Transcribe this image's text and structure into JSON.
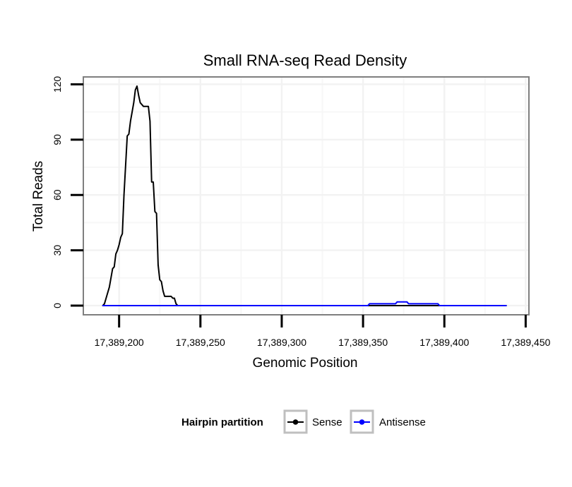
{
  "chart_data": {
    "type": "line",
    "title": "Small RNA-seq Read Density",
    "xlabel": "Genomic Position",
    "ylabel": "Total Reads",
    "xlim": [
      17389178,
      17389452
    ],
    "ylim": [
      -5,
      124
    ],
    "x_ticks": [
      17389200,
      17389250,
      17389300,
      17389350,
      17389400,
      17389450
    ],
    "x_tick_labels": [
      "17,389,200",
      "17,389,250",
      "17,389,300",
      "17,389,350",
      "17,389,400",
      "17,389,450"
    ],
    "y_ticks": [
      0,
      30,
      60,
      90,
      120
    ],
    "y_tick_labels": [
      "0",
      "30",
      "60",
      "90",
      "120"
    ],
    "grid": true,
    "legend": {
      "title": "Hairpin partition",
      "position": "bottom"
    },
    "series": [
      {
        "name": "Sense",
        "color": "#000000",
        "points": [
          [
            17389190,
            0
          ],
          [
            17389191,
            1
          ],
          [
            17389192,
            4
          ],
          [
            17389193,
            7
          ],
          [
            17389194,
            10
          ],
          [
            17389195,
            15
          ],
          [
            17389196,
            20
          ],
          [
            17389197,
            21
          ],
          [
            17389198,
            28
          ],
          [
            17389199,
            30
          ],
          [
            17389200,
            33
          ],
          [
            17389201,
            37
          ],
          [
            17389202,
            39
          ],
          [
            17389203,
            60
          ],
          [
            17389204,
            76
          ],
          [
            17389205,
            92
          ],
          [
            17389206,
            93
          ],
          [
            17389207,
            100
          ],
          [
            17389208,
            105
          ],
          [
            17389209,
            110
          ],
          [
            17389210,
            117
          ],
          [
            17389211,
            119
          ],
          [
            17389212,
            114
          ],
          [
            17389213,
            110
          ],
          [
            17389214,
            109
          ],
          [
            17389215,
            108
          ],
          [
            17389216,
            108
          ],
          [
            17389217,
            108
          ],
          [
            17389218,
            108
          ],
          [
            17389219,
            100
          ],
          [
            17389220,
            67
          ],
          [
            17389221,
            67
          ],
          [
            17389222,
            51
          ],
          [
            17389223,
            50
          ],
          [
            17389224,
            22
          ],
          [
            17389225,
            14
          ],
          [
            17389226,
            13
          ],
          [
            17389227,
            8
          ],
          [
            17389228,
            5
          ],
          [
            17389229,
            5
          ],
          [
            17389232,
            5
          ],
          [
            17389233,
            4
          ],
          [
            17389234,
            4
          ],
          [
            17389235,
            1
          ],
          [
            17389236,
            0
          ],
          [
            17389438,
            0
          ]
        ]
      },
      {
        "name": "Antisense",
        "color": "#0000ff",
        "points": [
          [
            17389190,
            0
          ],
          [
            17389353,
            0
          ],
          [
            17389354,
            1
          ],
          [
            17389370,
            1
          ],
          [
            17389371,
            2
          ],
          [
            17389377,
            2
          ],
          [
            17389378,
            1
          ],
          [
            17389396,
            1
          ],
          [
            17389397,
            0
          ],
          [
            17389438,
            0
          ]
        ]
      }
    ]
  }
}
